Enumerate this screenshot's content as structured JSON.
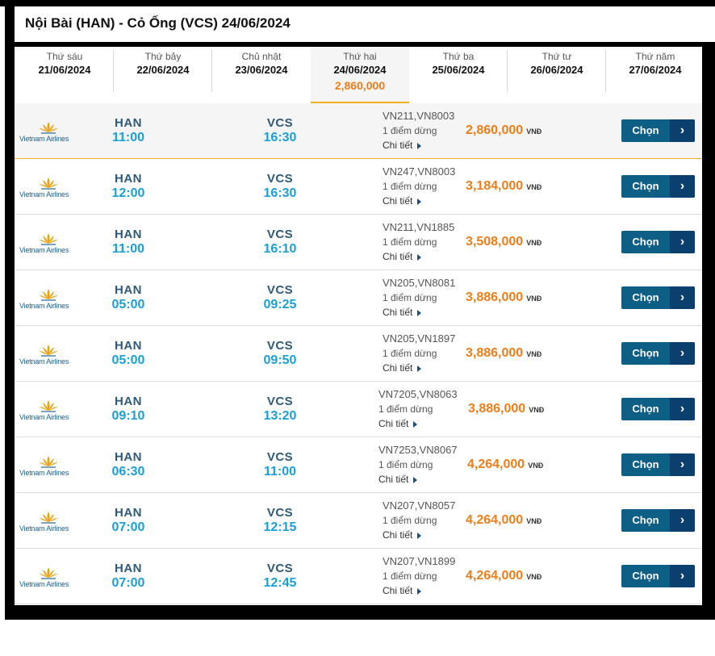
{
  "title": "Nội Bài (HAN) - Cỏ Ống (VCS) 24/06/2024",
  "tabs": [
    {
      "day": "Thứ sáu",
      "date": "21/06/2024",
      "price": ""
    },
    {
      "day": "Thứ bảy",
      "date": "22/06/2024",
      "price": ""
    },
    {
      "day": "Chủ nhật",
      "date": "23/06/2024",
      "price": ""
    },
    {
      "day": "Thứ hai",
      "date": "24/06/2024",
      "price": "2,860,000",
      "active": true
    },
    {
      "day": "Thứ ba",
      "date": "25/06/2024",
      "price": ""
    },
    {
      "day": "Thứ tư",
      "date": "26/06/2024",
      "price": ""
    },
    {
      "day": "Thứ năm",
      "date": "27/06/2024",
      "price": ""
    }
  ],
  "airline": "Vietnam Airlines",
  "stops_label": "1 điểm dừng",
  "detail_label": "Chi tiết",
  "currency": "VNĐ",
  "choose_label": "Chọn",
  "choose_arrow": "›",
  "colors": {
    "price": "#f07d18",
    "time": "#1a9fd6",
    "button": "#0d5f86"
  },
  "flights": [
    {
      "from": "HAN",
      "dep": "11:00",
      "to": "VCS",
      "arr": "16:30",
      "flight_no": "VN211,VN8003",
      "price": "2,860,000",
      "highlight": true
    },
    {
      "from": "HAN",
      "dep": "12:00",
      "to": "VCS",
      "arr": "16:30",
      "flight_no": "VN247,VN8003",
      "price": "3,184,000"
    },
    {
      "from": "HAN",
      "dep": "11:00",
      "to": "VCS",
      "arr": "16:10",
      "flight_no": "VN211,VN1885",
      "price": "3,508,000"
    },
    {
      "from": "HAN",
      "dep": "05:00",
      "to": "VCS",
      "arr": "09:25",
      "flight_no": "VN205,VN8081",
      "price": "3,886,000"
    },
    {
      "from": "HAN",
      "dep": "05:00",
      "to": "VCS",
      "arr": "09:50",
      "flight_no": "VN205,VN1897",
      "price": "3,886,000"
    },
    {
      "from": "HAN",
      "dep": "09:10",
      "to": "VCS",
      "arr": "13:20",
      "flight_no": "VN7205,VN8063",
      "price": "3,886,000"
    },
    {
      "from": "HAN",
      "dep": "06:30",
      "to": "VCS",
      "arr": "11:00",
      "flight_no": "VN7253,VN8067",
      "price": "4,264,000"
    },
    {
      "from": "HAN",
      "dep": "07:00",
      "to": "VCS",
      "arr": "12:15",
      "flight_no": "VN207,VN8057",
      "price": "4,264,000"
    },
    {
      "from": "HAN",
      "dep": "07:00",
      "to": "VCS",
      "arr": "12:45",
      "flight_no": "VN207,VN1899",
      "price": "4,264,000"
    }
  ]
}
